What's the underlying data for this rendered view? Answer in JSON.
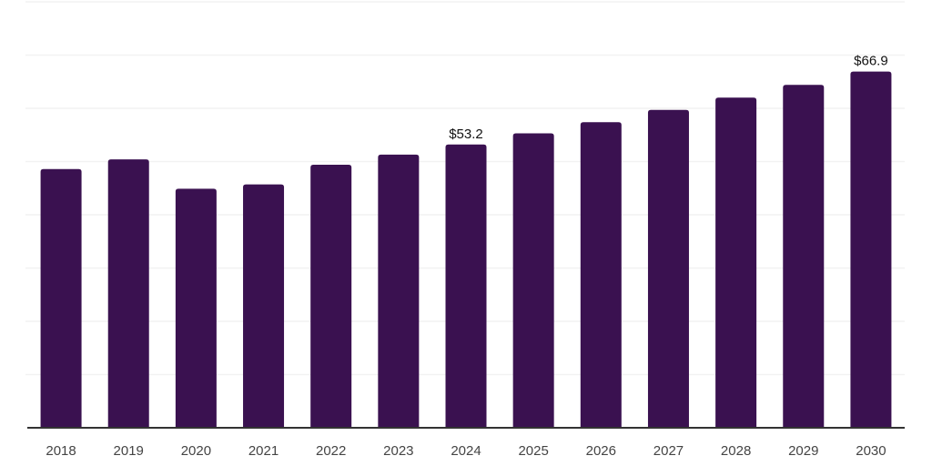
{
  "chart_data": {
    "type": "bar",
    "title": "",
    "xlabel": "",
    "ylabel": "",
    "categories": [
      "2018",
      "2019",
      "2020",
      "2021",
      "2022",
      "2023",
      "2024",
      "2025",
      "2026",
      "2027",
      "2028",
      "2029",
      "2030"
    ],
    "values": [
      48.6,
      50.4,
      44.9,
      45.7,
      49.4,
      51.3,
      53.2,
      55.3,
      57.4,
      59.7,
      62.0,
      64.4,
      66.9
    ],
    "annotations": [
      {
        "category": "2024",
        "text": "$53.2"
      },
      {
        "category": "2030",
        "text": "$66.9"
      }
    ],
    "ylim": [
      0,
      80
    ],
    "grid_step": 10,
    "grid": true,
    "legend_position": "none",
    "colors": {
      "bar": "#3A1150",
      "gridline": "#F2F2F2",
      "axis_line": "#333333",
      "tick_label": "#444444",
      "value_label": "#111111"
    }
  }
}
